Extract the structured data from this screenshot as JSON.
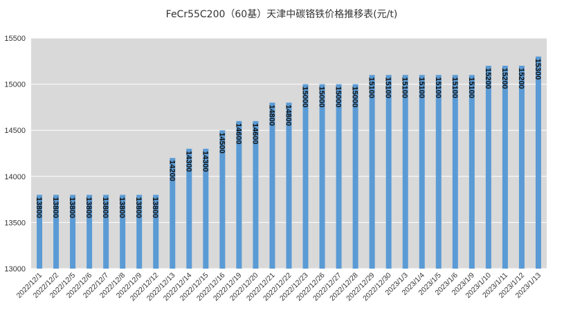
{
  "chart_data": {
    "type": "bar",
    "title": "FeCr55C200（60基）天津中碳铬铁价格推移表(元/t)",
    "xlabel": "",
    "ylabel": "",
    "categories": [
      "2022/12/1",
      "2022/12/2",
      "2022/12/5",
      "2022/12/6",
      "2022/12/7",
      "2022/12/8",
      "2022/12/9",
      "2022/12/12",
      "2022/12/13",
      "2022/12/14",
      "2022/12/15",
      "2022/12/16",
      "2022/12/19",
      "2022/12/20",
      "2022/12/21",
      "2022/12/22",
      "2022/12/23",
      "2022/12/26",
      "2022/12/27",
      "2022/12/28",
      "2022/12/29",
      "2022/12/30",
      "2023/1/3",
      "2023/1/4",
      "2023/1/5",
      "2023/1/6",
      "2023/1/9",
      "2023/1/10",
      "2023/1/11",
      "2023/1/12",
      "2023/1/13"
    ],
    "values": [
      13800,
      13800,
      13800,
      13800,
      13800,
      13800,
      13800,
      13800,
      14200,
      14300,
      14300,
      14500,
      14600,
      14600,
      14800,
      14800,
      15000,
      15000,
      15000,
      15000,
      15100,
      15100,
      15100,
      15100,
      15100,
      15100,
      15100,
      15200,
      15200,
      15200,
      15300
    ],
    "ylim": [
      13000,
      15500
    ],
    "yticks": [
      13000,
      13500,
      14000,
      14500,
      15000,
      15500
    ],
    "grid": true,
    "legend": "none",
    "bar_color": "#5b9bd5",
    "plot_background": "#d9d9d9",
    "data_labels": true
  }
}
